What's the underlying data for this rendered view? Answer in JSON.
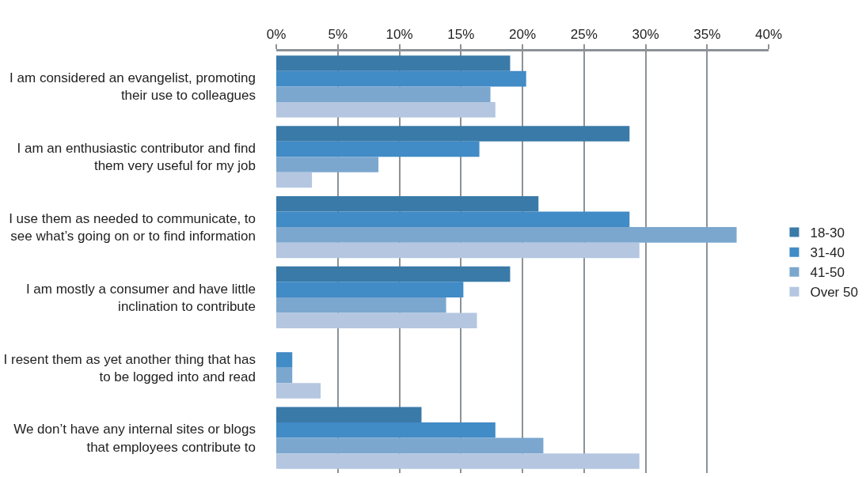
{
  "chart_data": {
    "type": "bar",
    "orientation": "horizontal",
    "categories": [
      "I am considered an evangelist, promoting\ntheir use to colleagues",
      "I am an enthusiastic contributor and find\nthem very useful for my job",
      "I use them as needed to communicate, to\nsee what’s going on or to find information",
      "I am mostly a consumer and have little\ninclination to contribute",
      "I resent them as yet another thing that has\nto be logged into and read",
      "We don’t have any internal sites or blogs\nthat employees contribute to"
    ],
    "series": [
      {
        "name": "18-30",
        "color": "#3a7aa8",
        "values": [
          19.0,
          28.7,
          21.3,
          19.0,
          0,
          11.8
        ]
      },
      {
        "name": "31-40",
        "color": "#418bc6",
        "values": [
          20.3,
          16.5,
          28.7,
          15.2,
          1.3,
          17.8
        ]
      },
      {
        "name": "41-50",
        "color": "#7ba7cf",
        "values": [
          17.4,
          8.3,
          37.4,
          13.8,
          1.3,
          21.7
        ]
      },
      {
        "name": "Over 50",
        "color": "#b4c6e0",
        "values": [
          17.8,
          2.9,
          29.5,
          16.3,
          3.6,
          29.5
        ]
      }
    ],
    "xlim": [
      0,
      40
    ],
    "xticks": [
      {
        "value": 0,
        "label": "0%"
      },
      {
        "value": 5,
        "label": "5%"
      },
      {
        "value": 10,
        "label": "10%"
      },
      {
        "value": 15,
        "label": "15%"
      },
      {
        "value": 20,
        "label": "20%"
      },
      {
        "value": 25,
        "label": "25%"
      },
      {
        "value": 30,
        "label": "30%"
      },
      {
        "value": 35,
        "label": "35%"
      },
      {
        "value": 40,
        "label": "40%"
      }
    ],
    "grid": "x",
    "legend": "right"
  }
}
